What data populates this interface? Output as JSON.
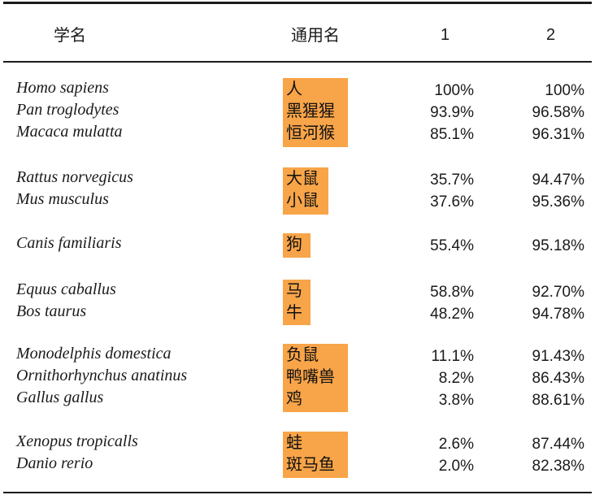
{
  "table": {
    "headers": {
      "scientific_name": "学名",
      "common_name": "通用名",
      "col1": "1",
      "col2": "2"
    },
    "groups": [
      {
        "rows": [
          {
            "scientific": "Homo sapiens",
            "common": "人",
            "v1": "100%",
            "v2": "100%"
          },
          {
            "scientific": "Pan troglodytes",
            "common": "黑猩猩",
            "v1": "93.9%",
            "v2": "96.58%"
          },
          {
            "scientific": "Macaca mulatta",
            "common": "恒河猴",
            "v1": "85.1%",
            "v2": "96.31%"
          }
        ]
      },
      {
        "rows": [
          {
            "scientific": "Rattus norvegicus",
            "common": "大鼠",
            "v1": "35.7%",
            "v2": "94.47%"
          },
          {
            "scientific": "Mus musculus",
            "common": "小鼠",
            "v1": "37.6%",
            "v2": "95.36%"
          }
        ]
      },
      {
        "rows": [
          {
            "scientific": "Canis familiaris",
            "common": "狗",
            "v1": "55.4%",
            "v2": "95.18%"
          }
        ]
      },
      {
        "rows": [
          {
            "scientific": "Equus caballus",
            "common": "马",
            "v1": "58.8%",
            "v2": "92.70%"
          },
          {
            "scientific": "Bos taurus",
            "common": "牛",
            "v1": "48.2%",
            "v2": "94.78%"
          }
        ]
      },
      {
        "rows": [
          {
            "scientific": "Monodelphis domestica",
            "common": "负鼠",
            "v1": "11.1%",
            "v2": "91.43%"
          },
          {
            "scientific": "Ornithorhynchus anatinus",
            "common": "鸭嘴兽",
            "v1": "8.2%",
            "v2": "86.43%"
          },
          {
            "scientific": "Gallus gallus",
            "common": "鸡",
            "v1": "3.8%",
            "v2": "88.61%"
          }
        ]
      },
      {
        "rows": [
          {
            "scientific": "Xenopus tropicalls",
            "common": "蛙",
            "v1": "2.6%",
            "v2": "87.44%"
          },
          {
            "scientific": "Danio rerio",
            "common": "斑马鱼",
            "v1": "2.0%",
            "v2": "82.38%"
          }
        ]
      }
    ]
  },
  "colors": {
    "highlight": "#f8a448",
    "text": "#1a1a1a"
  }
}
